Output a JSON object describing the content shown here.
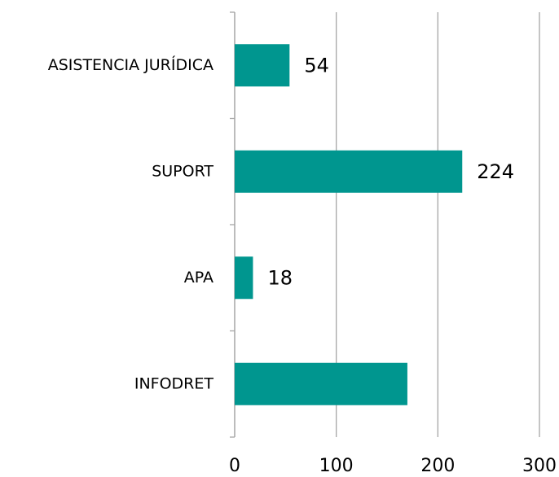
{
  "chart_data": {
    "type": "barh",
    "categories": [
      "ASISTENCIA JURÍDICA",
      "SUPORT",
      "APA",
      "INFODRET"
    ],
    "values": [
      54,
      224,
      18,
      170
    ],
    "value_labels": [
      54,
      224,
      18,
      null
    ],
    "color": "#00968f",
    "xlim": [
      0,
      300
    ],
    "xticks": [
      0,
      100,
      200,
      300
    ],
    "grid": true
  }
}
